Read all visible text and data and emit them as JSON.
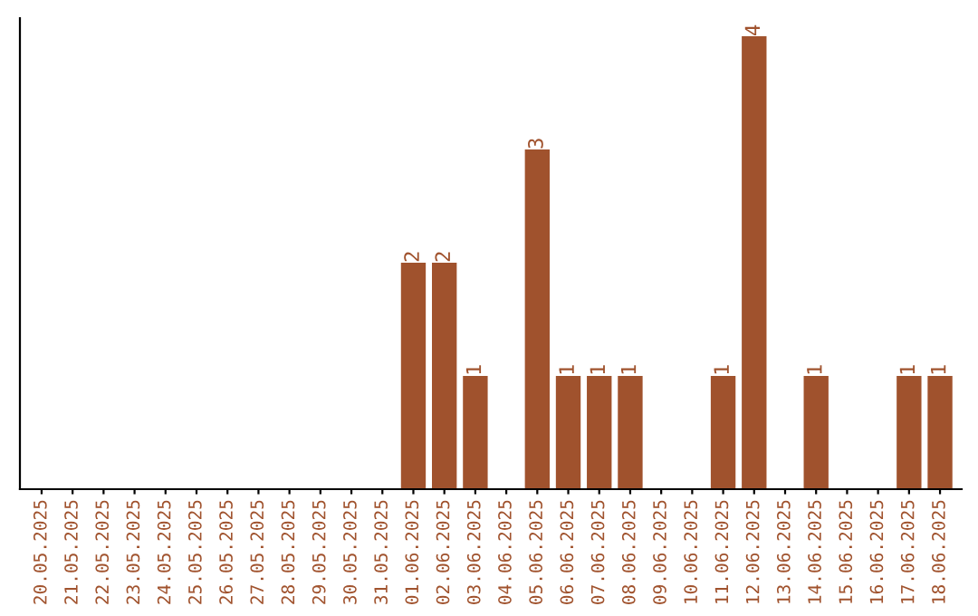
{
  "chart_data": {
    "type": "bar",
    "categories": [
      "20.05.2025",
      "21.05.2025",
      "22.05.2025",
      "23.05.2025",
      "24.05.2025",
      "25.05.2025",
      "26.05.2025",
      "27.05.2025",
      "28.05.2025",
      "29.05.2025",
      "30.05.2025",
      "31.05.2025",
      "01.06.2025",
      "02.06.2025",
      "03.06.2025",
      "04.06.2025",
      "05.06.2025",
      "06.06.2025",
      "07.06.2025",
      "08.06.2025",
      "09.06.2025",
      "10.06.2025",
      "11.06.2025",
      "12.06.2025",
      "13.06.2025",
      "14.06.2025",
      "15.06.2025",
      "16.06.2025",
      "17.06.2025",
      "18.06.2025"
    ],
    "values": [
      null,
      null,
      null,
      null,
      null,
      null,
      null,
      null,
      null,
      null,
      null,
      null,
      2,
      2,
      1,
      null,
      3,
      1,
      1,
      1,
      null,
      null,
      1,
      4,
      null,
      1,
      null,
      null,
      1,
      1
    ],
    "data_labels": true,
    "color": "#a0522d",
    "tick_labels": "x",
    "grid": false
  }
}
